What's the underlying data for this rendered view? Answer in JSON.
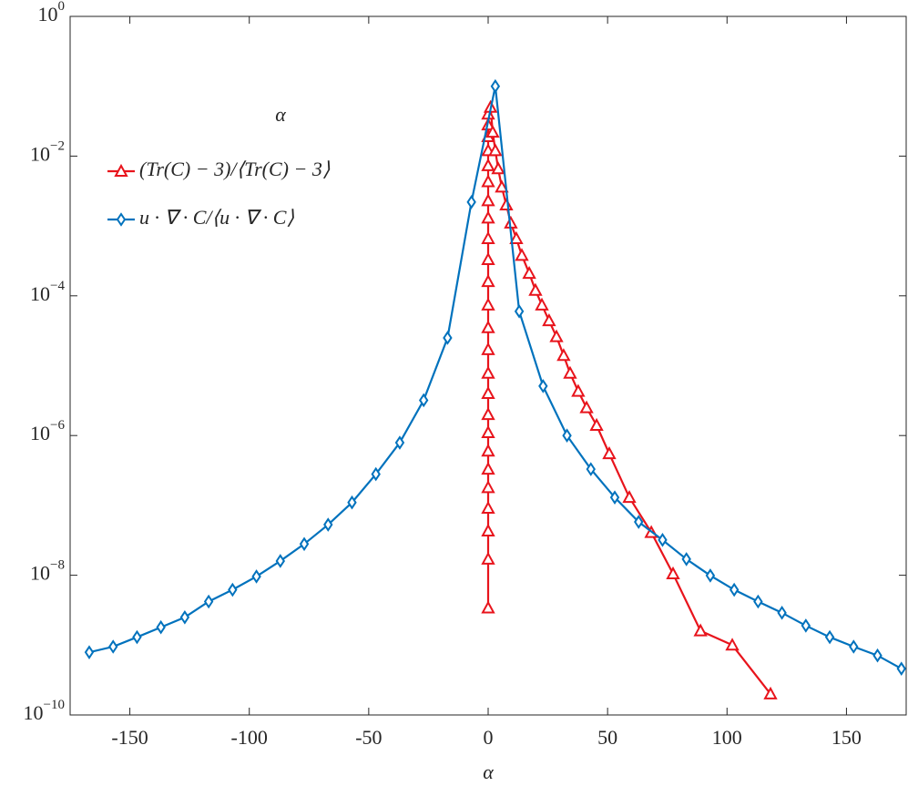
{
  "chart_data": {
    "type": "line",
    "xlabel": "α",
    "legend_title": "α",
    "xlim": [
      -175,
      175
    ],
    "xticks": [
      -150,
      -100,
      -50,
      0,
      50,
      100,
      150
    ],
    "ylim": [
      1e-10,
      1
    ],
    "log_y": true,
    "yticks": [
      {
        "value": 1e-10,
        "label": "10^−10"
      },
      {
        "value": 1e-08,
        "label": "10^−8"
      },
      {
        "value": 1e-06,
        "label": "10^−6"
      },
      {
        "value": 0.0001,
        "label": "10^−4"
      },
      {
        "value": 0.01,
        "label": "10^−2"
      },
      {
        "value": 1,
        "label": "10^0"
      }
    ],
    "grid": false,
    "legend": "upper left",
    "series": [
      {
        "name": "(Tr(C) − 3)/⟨Tr(C) − 3⟩",
        "color": "#e8141c",
        "marker": "triangle",
        "x": [
          0,
          0,
          0,
          0,
          0,
          0,
          0,
          0,
          0,
          0,
          0,
          0,
          0,
          0,
          0,
          0,
          0,
          0,
          0,
          0,
          0,
          0,
          0,
          0,
          0,
          1,
          1.9,
          3.0,
          4.2,
          5.7,
          7.6,
          9.5,
          11.8,
          14.1,
          17.2,
          19.8,
          22.5,
          25.5,
          28.6,
          31.6,
          34.3,
          37.7,
          41.2,
          45.4,
          50.7,
          59.1,
          68.3,
          77.4,
          88.9,
          102.2,
          118.2
        ],
        "values": [
          3.4e-09,
          1.7e-08,
          4.3e-08,
          9.1e-08,
          1.8e-07,
          3.3e-07,
          6e-07,
          1.1e-06,
          2e-06,
          4e-06,
          7.8e-06,
          1.7e-05,
          3.5e-05,
          7.4e-05,
          0.00016,
          0.00033,
          0.00066,
          0.0013,
          0.0023,
          0.0043,
          0.0073,
          0.012,
          0.019,
          0.028,
          0.04,
          0.05,
          0.022,
          0.012,
          0.0066,
          0.0036,
          0.002,
          0.0011,
          0.00066,
          0.00038,
          0.00021,
          0.00012,
          7.4e-05,
          4.4e-05,
          2.6e-05,
          1.4e-05,
          7.8e-06,
          4.3e-06,
          2.5e-06,
          1.4e-06,
          5.5e-07,
          1.3e-07,
          4.1e-08,
          1.05e-08,
          1.6e-09,
          1e-09,
          2e-10
        ]
      },
      {
        "name": "u · ∇ · C/⟨u · ∇ · C⟩",
        "color": "#0072bd",
        "marker": "diamond",
        "x": [
          -167,
          -157,
          -147,
          -137,
          -127,
          -117,
          -107,
          -97,
          -87,
          -77,
          -67,
          -57,
          -47,
          -37,
          -27,
          -17,
          -7,
          3,
          13,
          23,
          33,
          43,
          53,
          63,
          73,
          83,
          93,
          103,
          113,
          123,
          133,
          143,
          153,
          163,
          173
        ],
        "values": [
          7.9e-10,
          9.5e-10,
          1.3e-09,
          1.8e-09,
          2.5e-09,
          4.2e-09,
          6.2e-09,
          9.6e-09,
          1.6e-08,
          2.8e-08,
          5.3e-08,
          1.1e-07,
          2.8e-07,
          7.9e-07,
          3.2e-06,
          2.5e-05,
          0.0022,
          0.1,
          6e-05,
          5.1e-06,
          1e-06,
          3.3e-07,
          1.3e-07,
          5.8e-08,
          3.2e-08,
          1.7e-08,
          9.9e-09,
          6.2e-09,
          4.2e-09,
          2.9e-09,
          1.9e-09,
          1.3e-09,
          9.5e-10,
          7.1e-10,
          4.6e-10
        ]
      }
    ]
  }
}
